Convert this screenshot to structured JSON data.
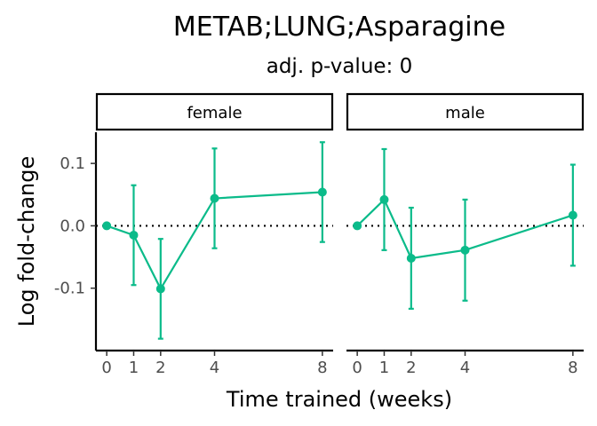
{
  "chart_data": {
    "type": "line",
    "title": "METAB;LUNG;Asparagine",
    "subtitle": "adj. p-value: 0",
    "xlabel": "Time trained (weeks)",
    "ylabel": "Log fold-change",
    "x_ticks": [
      0,
      1,
      2,
      4,
      8
    ],
    "y_ticks": [
      0.1,
      0.0,
      -0.1
    ],
    "y_tick_labels": [
      "0.1",
      "0.0",
      "-0.1"
    ],
    "xlim": [
      -0.4,
      8.4
    ],
    "ylim": [
      -0.2,
      0.15
    ],
    "reference_line": 0,
    "color": "#0bbb8a",
    "panels": [
      {
        "label": "female",
        "points": [
          {
            "x": 0,
            "y": 0.0,
            "lo": 0.0,
            "hi": 0.0
          },
          {
            "x": 1,
            "y": -0.015,
            "lo": -0.095,
            "hi": 0.065
          },
          {
            "x": 2,
            "y": -0.101,
            "lo": -0.181,
            "hi": -0.021
          },
          {
            "x": 4,
            "y": 0.044,
            "lo": -0.036,
            "hi": 0.124
          },
          {
            "x": 8,
            "y": 0.054,
            "lo": -0.026,
            "hi": 0.134
          }
        ]
      },
      {
        "label": "male",
        "points": [
          {
            "x": 0,
            "y": 0.0,
            "lo": 0.0,
            "hi": 0.0
          },
          {
            "x": 1,
            "y": 0.042,
            "lo": -0.039,
            "hi": 0.123
          },
          {
            "x": 2,
            "y": -0.052,
            "lo": -0.133,
            "hi": 0.029
          },
          {
            "x": 4,
            "y": -0.039,
            "lo": -0.12,
            "hi": 0.042
          },
          {
            "x": 8,
            "y": 0.017,
            "lo": -0.064,
            "hi": 0.098
          }
        ]
      }
    ]
  }
}
